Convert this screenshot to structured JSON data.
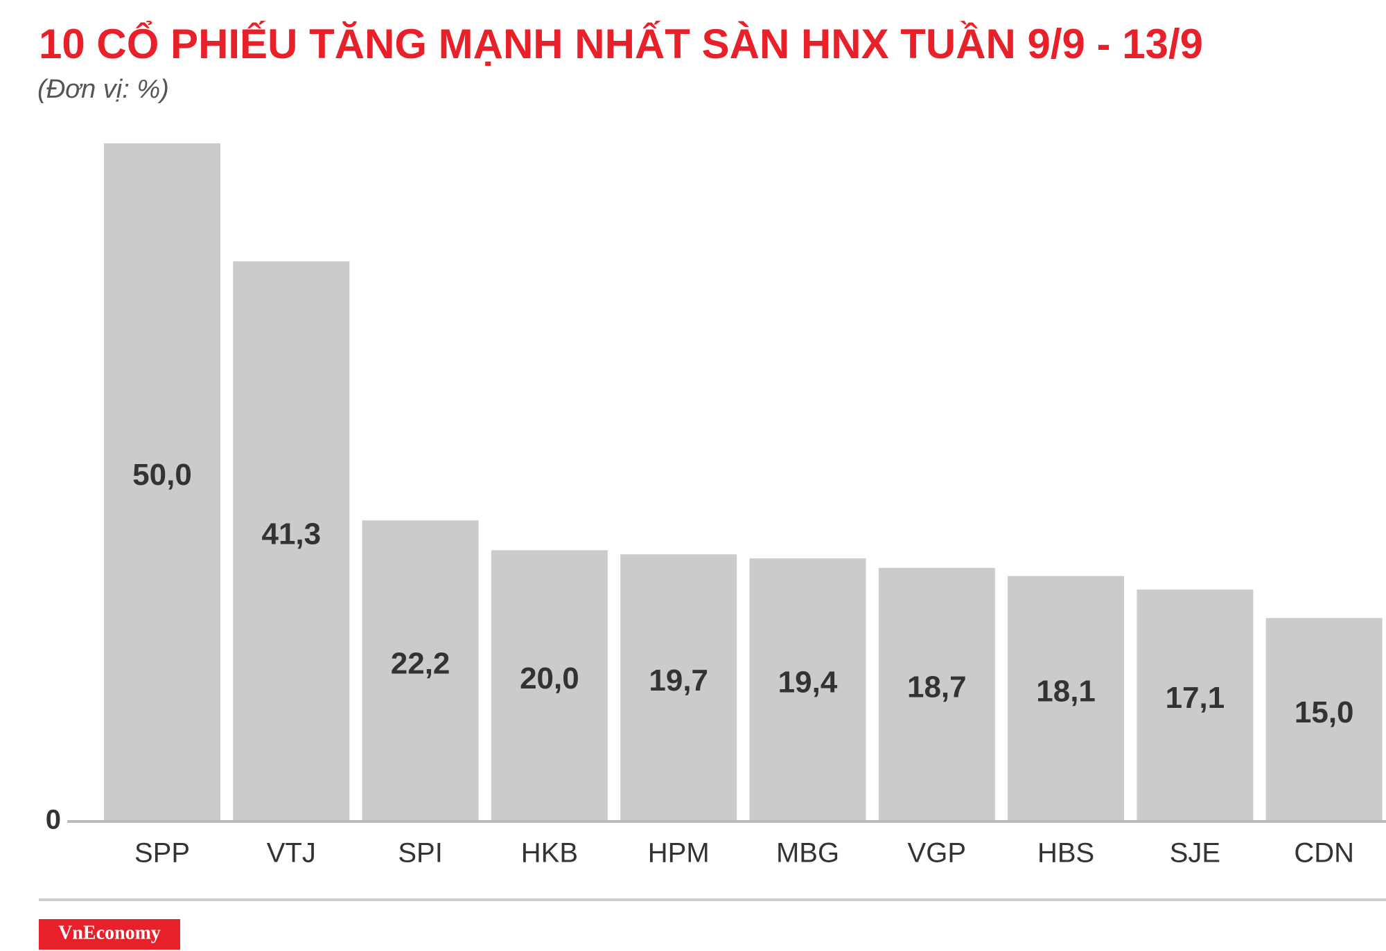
{
  "chart_data": {
    "type": "bar",
    "title": "10 CỔ PHIẾU TĂNG MẠNH NHẤT SÀN HNX TUẦN 9/9 - 13/9",
    "subtitle": "(Đơn vị: %)",
    "categories": [
      "SPP",
      "VTJ",
      "SPI",
      "HKB",
      "HPM",
      "MBG",
      "VGP",
      "HBS",
      "SJE",
      "CDN"
    ],
    "values": [
      50.0,
      41.3,
      22.2,
      20.0,
      19.7,
      19.4,
      18.7,
      18.1,
      17.1,
      15.0
    ],
    "value_labels": [
      "50,0",
      "41,3",
      "22,2",
      "20,0",
      "19,7",
      "19,4",
      "18,7",
      "18,1",
      "17,1",
      "15,0"
    ],
    "color": "#cccbcc",
    "ylim": [
      0,
      50
    ],
    "yticks": [
      0
    ],
    "source": "VnEconomy"
  }
}
